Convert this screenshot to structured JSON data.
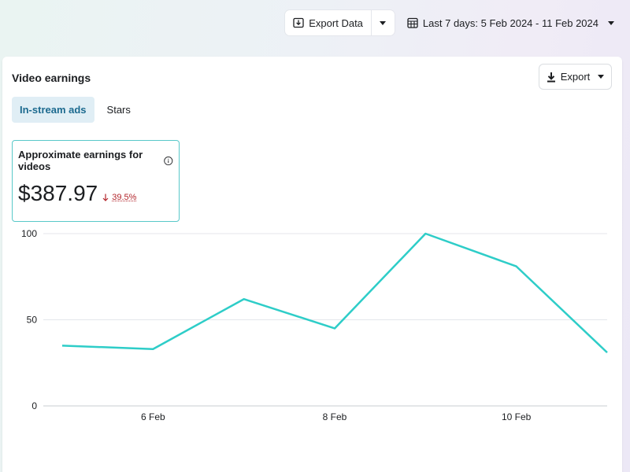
{
  "topbar": {
    "export_data_label": "Export Data",
    "date_range_label": "Last 7 days: 5 Feb 2024 - 11 Feb 2024"
  },
  "card": {
    "title": "Video earnings",
    "export_label": "Export",
    "tabs": [
      {
        "label": "In-stream ads",
        "active": true
      },
      {
        "label": "Stars",
        "active": false
      }
    ],
    "metric": {
      "label": "Approximate earnings for videos",
      "value": "$387.97",
      "change": "39.5%",
      "direction": "down"
    }
  },
  "colors": {
    "line": "#2ecdc8",
    "metric_border": "#59c8c9",
    "decrease": "#b3262c",
    "active_tab_bg": "#e0eef5",
    "active_tab_text": "#1c6a8f"
  },
  "chart_data": {
    "type": "line",
    "x": [
      "5 Feb",
      "6 Feb",
      "7 Feb",
      "8 Feb",
      "9 Feb",
      "10 Feb",
      "11 Feb"
    ],
    "x_tick_labels": [
      "6 Feb",
      "8 Feb",
      "10 Feb"
    ],
    "series": [
      {
        "values": [
          35,
          33,
          62,
          45,
          100,
          81,
          31
        ]
      }
    ],
    "y_ticks": [
      "0",
      "50",
      "100"
    ],
    "ylim": [
      0,
      100
    ],
    "grid": true
  }
}
